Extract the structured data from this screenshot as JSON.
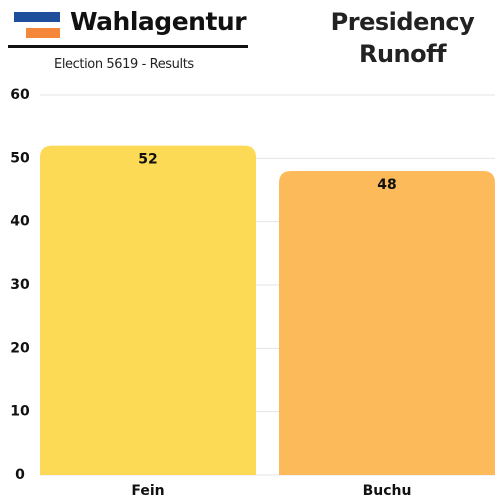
{
  "chart_data": {
    "type": "bar",
    "brand": "Wahlagentur",
    "subtitle": "Election 5619 - Results",
    "title": "Presidency Runoff",
    "categories": [
      "Fein",
      "Buchu"
    ],
    "values": [
      52,
      48
    ],
    "colors": [
      "#fdda55",
      "#fdba5a"
    ],
    "ylim": [
      0,
      60
    ],
    "yticks": [
      0,
      10,
      20,
      30,
      40,
      50,
      60
    ],
    "grid": true
  }
}
